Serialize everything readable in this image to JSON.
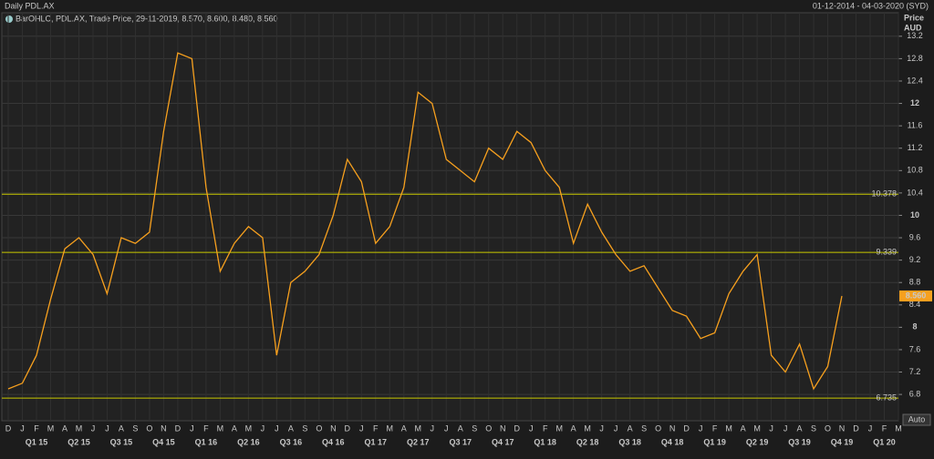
{
  "chart_data": {
    "type": "line",
    "title": "Daily PDL.AX",
    "date_range": "01-12-2014 - 04-03-2020 (SYD)",
    "legend_text": "BarOHLC, PDL.AX, Trade Price, 29-11-2019, 8.570, 8.600, 8.480, 8.560",
    "y_axis_label": "Price",
    "y_axis_unit": "AUD",
    "button": "Auto",
    "categories": [
      "D",
      "J",
      "F",
      "M",
      "A",
      "M",
      "J",
      "J",
      "A",
      "S",
      "O",
      "N",
      "D",
      "J",
      "F",
      "M",
      "A",
      "M",
      "J",
      "J",
      "A",
      "S",
      "O",
      "N",
      "D",
      "J",
      "F",
      "M",
      "A",
      "M",
      "J",
      "J",
      "A",
      "S",
      "O",
      "N",
      "D",
      "J",
      "F",
      "M",
      "A",
      "M",
      "J",
      "J",
      "A",
      "S",
      "O",
      "N",
      "D",
      "J",
      "F",
      "M",
      "A",
      "M",
      "J",
      "J",
      "A",
      "S",
      "O",
      "N",
      "D",
      "J",
      "F",
      "M"
    ],
    "quarters": [
      "Q1 15",
      "Q2 15",
      "Q3 15",
      "Q4 15",
      "Q1 16",
      "Q2 16",
      "Q3 16",
      "Q4 16",
      "Q1 17",
      "Q2 17",
      "Q3 17",
      "Q4 17",
      "Q1 18",
      "Q2 18",
      "Q3 18",
      "Q4 18",
      "Q1 19",
      "Q2 19",
      "Q3 19",
      "Q4 19",
      "Q1 20"
    ],
    "series": [
      {
        "name": "PDL.AX",
        "color": "#f7a01e",
        "values": [
          6.9,
          7.0,
          7.5,
          8.5,
          9.4,
          9.6,
          9.3,
          8.6,
          9.6,
          9.5,
          9.7,
          11.5,
          12.9,
          12.8,
          10.5,
          9.0,
          9.5,
          9.8,
          9.6,
          7.5,
          8.8,
          9.0,
          9.3,
          10.0,
          11.0,
          10.6,
          9.5,
          9.8,
          10.5,
          12.2,
          12.0,
          11.0,
          10.8,
          10.6,
          11.2,
          11.0,
          11.5,
          11.3,
          10.8,
          10.5,
          9.5,
          10.2,
          9.7,
          9.3,
          9.0,
          9.1,
          8.7,
          8.3,
          8.2,
          7.8,
          7.9,
          8.6,
          9.0,
          9.3,
          7.5,
          7.2,
          7.7,
          6.9,
          7.3,
          8.56,
          null,
          null,
          null,
          null
        ]
      }
    ],
    "levels": [
      10.378,
      9.339,
      6.735
    ],
    "level_color": "#c8c800",
    "last_price": {
      "value": 8.56,
      "label": "8.560"
    },
    "ylim": [
      6.33,
      13.62
    ],
    "yticks": [
      6.8,
      7.2,
      7.6,
      8,
      8.4,
      8.8,
      9.2,
      9.6,
      10,
      10.4,
      10.8,
      11.2,
      11.6,
      12,
      12.4,
      12.8,
      13.2
    ],
    "grid": true
  }
}
